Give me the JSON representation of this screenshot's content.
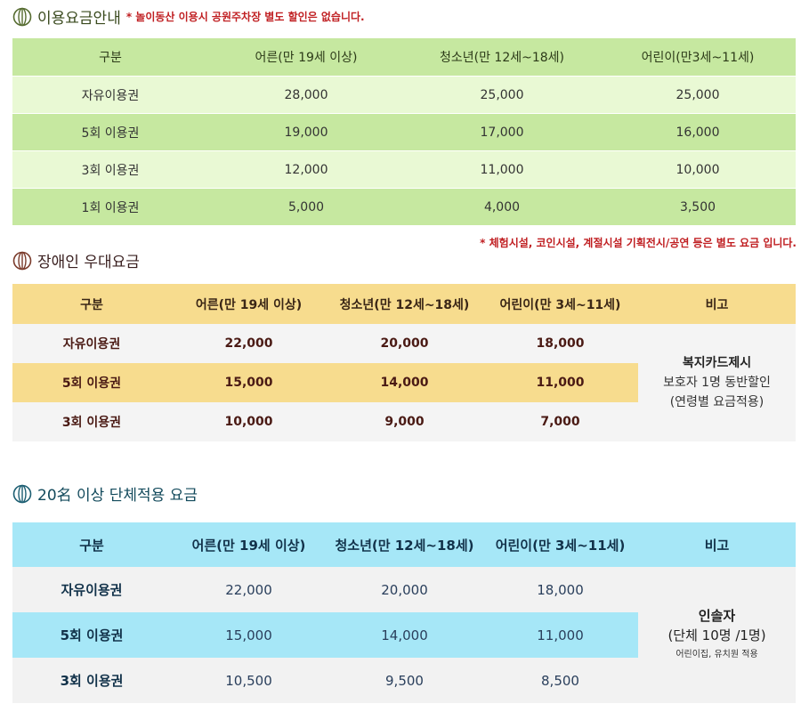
{
  "section1": {
    "title": "이용요금안내",
    "note": "* 놀이동산 이용시 공원주차장 별도 할인은 없습니다.",
    "headers": [
      "구분",
      "어른(만 19세 이상)",
      "청소년(만 12세~18세)",
      "어린이(만3세~11세)"
    ],
    "rows": [
      [
        "자유이용권",
        "28,000",
        "25,000",
        "25,000"
      ],
      [
        "5회 이용권",
        "19,000",
        "17,000",
        "16,000"
      ],
      [
        "3회 이용권",
        "12,000",
        "11,000",
        "10,000"
      ],
      [
        "1회 이용권",
        "5,000",
        "4,000",
        "3,500"
      ]
    ]
  },
  "section2": {
    "title": "장애인 우대요금",
    "note": "* 체험시설, 코인시설, 계절시설 기획전시/공연 등은 별도 요금 입니다.",
    "headers": [
      "구분",
      "어른(만 19세 이상)",
      "청소년(만 12세~18세)",
      "어린이(만 3세~11세)",
      "비고"
    ],
    "rows": [
      [
        "자유이용권",
        "22,000",
        "20,000",
        "18,000"
      ],
      [
        "5회 이용권",
        "15,000",
        "14,000",
        "11,000"
      ],
      [
        "3회 이용권",
        "10,000",
        "9,000",
        "7,000"
      ]
    ],
    "remark": [
      "복지카드제시",
      "보호자 1명 동반할인",
      "(연령별 요금적용)"
    ]
  },
  "section3": {
    "title": "20名 이상 단체적용 요금",
    "headers": [
      "구분",
      "어른(만 19세 이상)",
      "청소년(만 12세~18세)",
      "어린이(만 3세~11세)",
      "비고"
    ],
    "rows": [
      [
        "자유이용권",
        "22,000",
        "20,000",
        "18,000"
      ],
      [
        "5회 이용권",
        "15,000",
        "14,000",
        "11,000"
      ],
      [
        "3회 이용권",
        "10,500",
        "9,500",
        "8,500"
      ]
    ],
    "remark": [
      "인솔자",
      "(단체 10명 /1명)",
      "어린이집, 유치원 적용"
    ]
  },
  "icon": "globe-icon",
  "colors": {
    "green": "#c6e8a0",
    "yellow": "#f7dc8e",
    "blue": "#a6e7f7",
    "note_red": "#c01f22"
  }
}
